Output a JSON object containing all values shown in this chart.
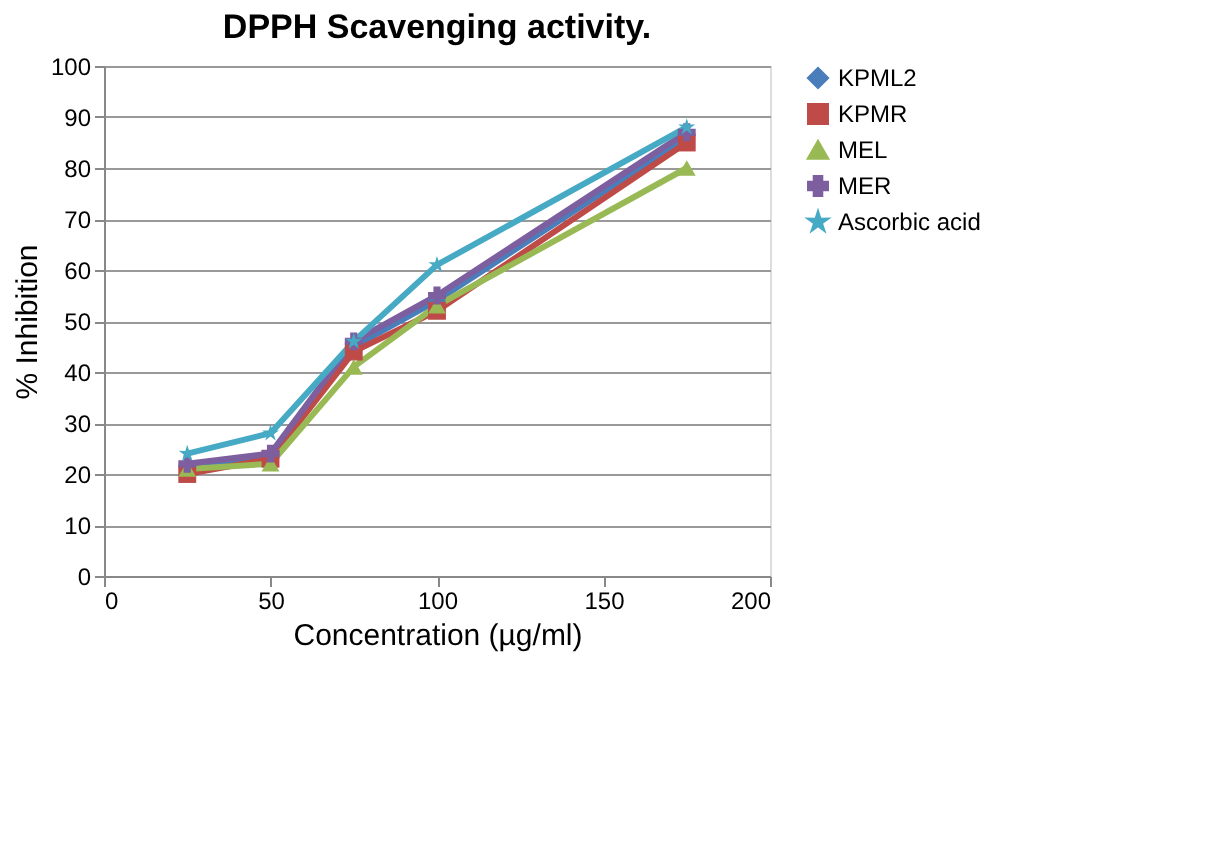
{
  "chart_data": {
    "type": "line",
    "title": "DPPH Scavenging activity.",
    "xlabel": "Concentration (µg/ml)",
    "ylabel": "% Inhibition",
    "x": [
      25,
      50,
      75,
      100,
      175
    ],
    "series": [
      {
        "name": "KPML2",
        "color": "#4a7ebb",
        "marker": "diamond",
        "values": [
          21,
          23,
          45,
          54,
          86
        ]
      },
      {
        "name": "KPMR",
        "color": "#be4b48",
        "marker": "square",
        "values": [
          20,
          23,
          44,
          52,
          85
        ]
      },
      {
        "name": "MEL",
        "color": "#98b954",
        "marker": "triangle",
        "values": [
          21,
          22,
          41,
          53,
          80
        ]
      },
      {
        "name": "MER",
        "color": "#7d5fa0",
        "marker": "cross",
        "values": [
          22,
          24,
          46,
          55,
          87
        ]
      },
      {
        "name": "Ascorbic acid",
        "color": "#46aac5",
        "marker": "star",
        "values": [
          24,
          28,
          46,
          61,
          88
        ]
      }
    ],
    "xlim": [
      0,
      200
    ],
    "xticks": [
      0,
      50,
      100,
      150,
      200
    ],
    "ylim": [
      0,
      100
    ],
    "yticks": [
      0,
      10,
      20,
      30,
      40,
      50,
      60,
      70,
      80,
      90,
      100
    ],
    "grid": "y",
    "legend": "right",
    "line_style": "solid"
  }
}
